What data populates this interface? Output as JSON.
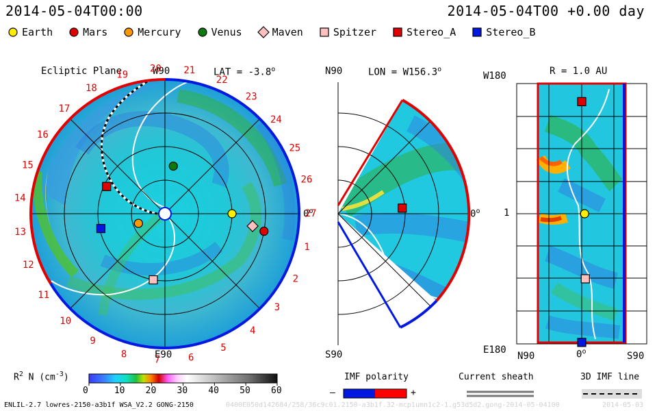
{
  "header": {
    "left_time": "2014-05-04T00:00",
    "right_time": "2014-05-04T00 +0.00 day"
  },
  "legend": [
    {
      "name": "Earth",
      "shape": "circle",
      "color": "#ffee00"
    },
    {
      "name": "Mars",
      "shape": "circle",
      "color": "#e00000"
    },
    {
      "name": "Mercury",
      "shape": "circle",
      "color": "#ff9900"
    },
    {
      "name": "Venus",
      "shape": "circle",
      "color": "#0c7a0c"
    },
    {
      "name": "Maven",
      "shape": "diamond",
      "color": "#ffc0c0"
    },
    {
      "name": "Spitzer",
      "shape": "square",
      "color": "#ffc0c0"
    },
    {
      "name": "Stereo_A",
      "shape": "square",
      "color": "#e00000"
    },
    {
      "name": "Stereo_B",
      "shape": "square",
      "color": "#0018e0"
    }
  ],
  "panels": {
    "ecliptic": {
      "title": "Ecliptic Plane",
      "top_label": "W90",
      "bottom_label": "E90",
      "right_label": "0",
      "lat_label": "LAT = -3.8",
      "degree": "o"
    },
    "meridional": {
      "top_label": "N90",
      "bottom_label": "S90",
      "lon_label": "LON = W156.3",
      "right_label": "0",
      "degree": "o"
    },
    "radial": {
      "r_label": "R = 1.0 AU",
      "top_left": "W180",
      "mid_left": "1",
      "bottom_left": "E180",
      "bottom_n": "N90",
      "bottom_zero": "0",
      "bottom_s": "S90",
      "degree": "o"
    }
  },
  "carrington_numbers": [
    "19",
    "20",
    "21",
    "22",
    "23",
    "24",
    "25",
    "26",
    "27",
    "1",
    "2",
    "3",
    "4",
    "5",
    "6",
    "7",
    "8",
    "9",
    "10",
    "11",
    "12",
    "13",
    "14",
    "15",
    "16",
    "17",
    "18"
  ],
  "colorbar": {
    "label": "R",
    "label_sup": "2",
    "label_rest": " N (cm",
    "label_sup2": "-3",
    "label_end": ")",
    "ticks": [
      "0",
      "10",
      "20",
      "30",
      "40",
      "50",
      "60"
    ],
    "min": 0,
    "max": 60
  },
  "imf": {
    "title": "IMF polarity",
    "minus": "–",
    "plus": "+",
    "neg_color": "#0018e0",
    "pos_color": "#ff0000"
  },
  "current_sheath": {
    "title": "Current sheath"
  },
  "imf_line": {
    "title": "3D IMF line"
  },
  "footer": {
    "model": "ENLIL-2.7 lowres-2150-a3b1f WSA_V2.2 GONG-2150",
    "watermark": "0400E050d142684/258/36c9c01.2150-a3b1f.32-mcp1umn1c2-1.g53d5d2.gong-2014-05-04100",
    "date": "2014-05-03"
  },
  "chart_data": [
    {
      "type": "heatmap",
      "title": "Ecliptic Plane",
      "quantity": "R^2 N (cm^-3)",
      "polar_labels": {
        "top": "W90",
        "bottom": "E90",
        "right": "0"
      },
      "objects": [
        {
          "name": "Earth",
          "angle_deg": 0,
          "r_au": 1.0
        },
        {
          "name": "Mars",
          "angle_deg": -10,
          "r_au": 1.5
        },
        {
          "name": "Mercury",
          "angle_deg": 200,
          "r_au": 0.42
        },
        {
          "name": "Venus",
          "angle_deg": 80,
          "r_au": 0.72
        },
        {
          "name": "Maven",
          "angle_deg": -8,
          "r_au": 1.32
        },
        {
          "name": "Spitzer",
          "angle_deg": 260,
          "r_au": 1.0
        },
        {
          "name": "Stereo_A",
          "angle_deg": 155,
          "r_au": 0.96
        },
        {
          "name": "Stereo_B",
          "angle_deg": 193,
          "r_au": 0.98
        }
      ]
    },
    {
      "type": "heatmap",
      "title": "LON = W156.3",
      "quantity": "R^2 N (cm^-3)",
      "polar_labels": {
        "top": "N90",
        "bottom": "S90",
        "right": "0"
      },
      "objects": [
        {
          "name": "Stereo_A",
          "lat_deg": 5,
          "r_au": 0.96
        }
      ]
    },
    {
      "type": "heatmap",
      "title": "R = 1.0 AU",
      "quantity": "R^2 N (cm^-3)",
      "x_ticks": [
        "N90",
        "0",
        "S90"
      ],
      "y_ticks": [
        "W180",
        "1",
        "E180"
      ],
      "objects": [
        {
          "name": "Stereo_A",
          "lat_deg": 0,
          "lon_deg": 155
        },
        {
          "name": "Earth",
          "lat_deg": -4,
          "lon_deg": 0
        },
        {
          "name": "Spitzer",
          "lat_deg": -5,
          "lon_deg": -90
        },
        {
          "name": "Stereo_B",
          "lat_deg": 0,
          "lon_deg": -178
        }
      ],
      "colorbar": {
        "min": 0,
        "max": 60,
        "ticks": [
          0,
          10,
          20,
          30,
          40,
          50,
          60
        ]
      }
    }
  ]
}
